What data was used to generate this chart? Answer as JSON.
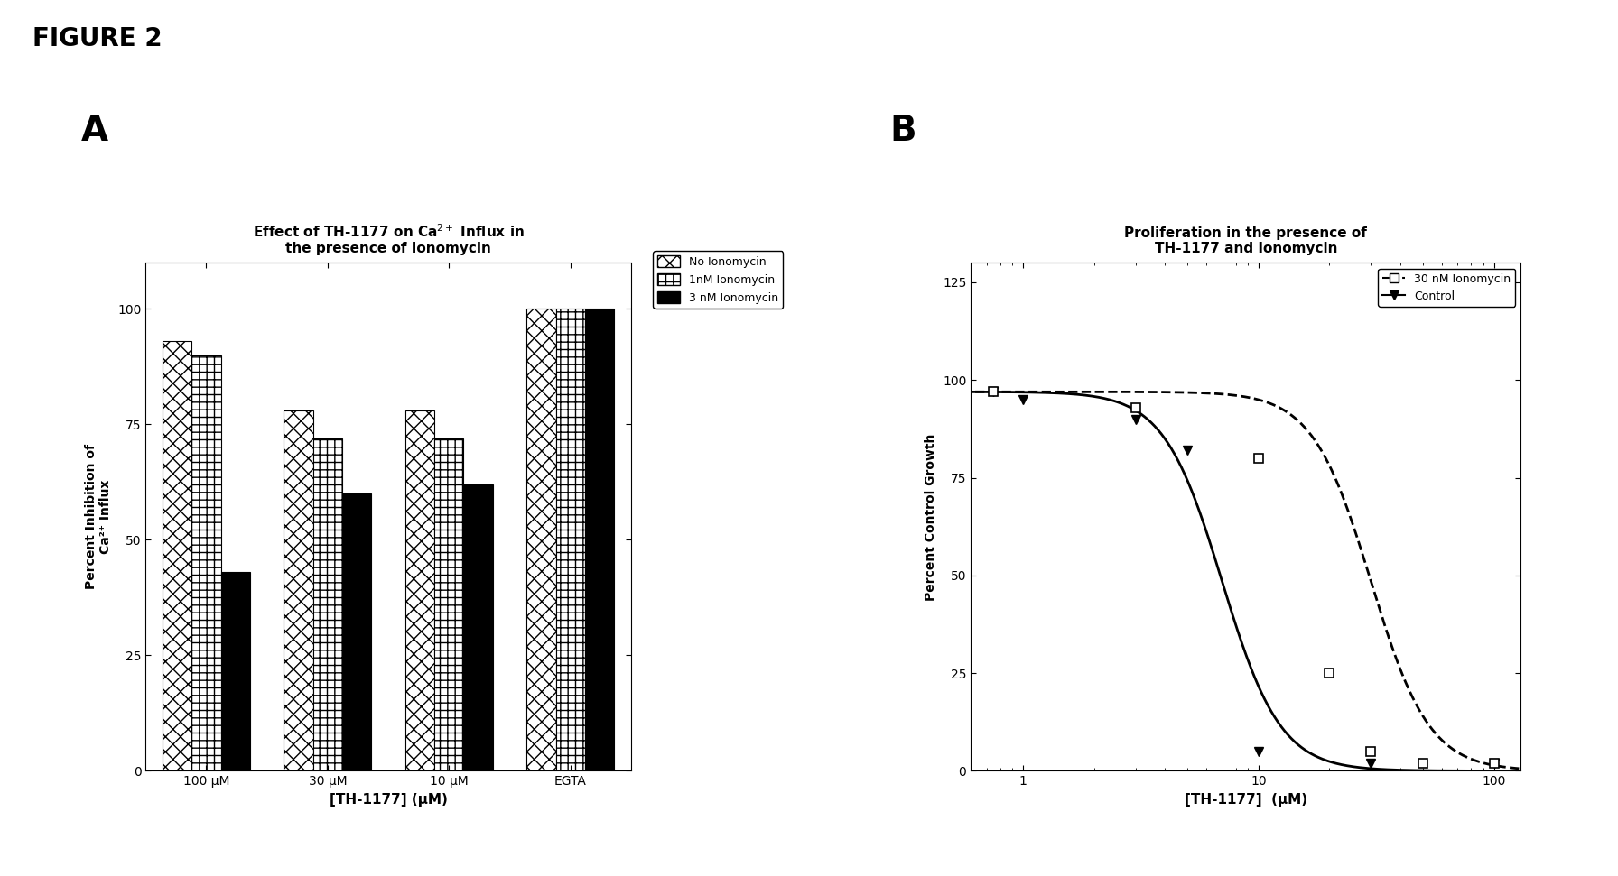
{
  "figure_title": "FIGURE 2",
  "panel_A": {
    "title": "Effect of TH-1177 on Ca$^{2+}$ Influx in\nthe presence of Ionomycin",
    "xlabel": "[TH-1177] (μM)",
    "ylabel": "Percent Inhibition of\nCa²⁺ Influx",
    "categories": [
      "100 μM",
      "30 μM",
      "10 μM",
      "EGTA"
    ],
    "series": {
      "No Ionomycin": [
        93,
        78,
        78,
        100
      ],
      "1nM Ionomycin": [
        90,
        72,
        72,
        100
      ],
      "3 nM Ionomycin": [
        43,
        60,
        62,
        100
      ]
    },
    "ylim": [
      0,
      110
    ],
    "yticks": [
      0,
      25,
      50,
      75,
      100
    ],
    "legend_labels": [
      "No Ionomycin",
      "1nM Ionomycin",
      "3 nM Ionomycin"
    ]
  },
  "panel_B": {
    "title": "Proliferation in the presence of\nTH-1177 and Ionomycin",
    "xlabel": "[TH-1177]  (μM)",
    "ylabel": "Percent Control Growth",
    "control_ic50": 7.0,
    "control_hill": 3.5,
    "ionom_ic50": 30.0,
    "ionom_hill": 3.5,
    "ctrl_markers_x": [
      0.75,
      1.0,
      3.0,
      5.0,
      10.0,
      30.0,
      100.0
    ],
    "ctrl_markers_y": [
      97,
      95,
      90,
      82,
      5,
      2,
      2
    ],
    "ion_markers_x": [
      0.75,
      3.0,
      10.0,
      20.0,
      30.0,
      50.0,
      100.0
    ],
    "ion_markers_y": [
      97,
      93,
      80,
      25,
      5,
      2,
      2
    ],
    "ylim": [
      0,
      130
    ],
    "yticks": [
      0,
      25,
      50,
      75,
      100,
      125
    ],
    "xlim_log": [
      0.6,
      130
    ],
    "xticks": [
      1,
      10,
      100
    ],
    "legend_labels": [
      "30 nM Ionomycin",
      "Control"
    ]
  },
  "background_color": "#ffffff"
}
